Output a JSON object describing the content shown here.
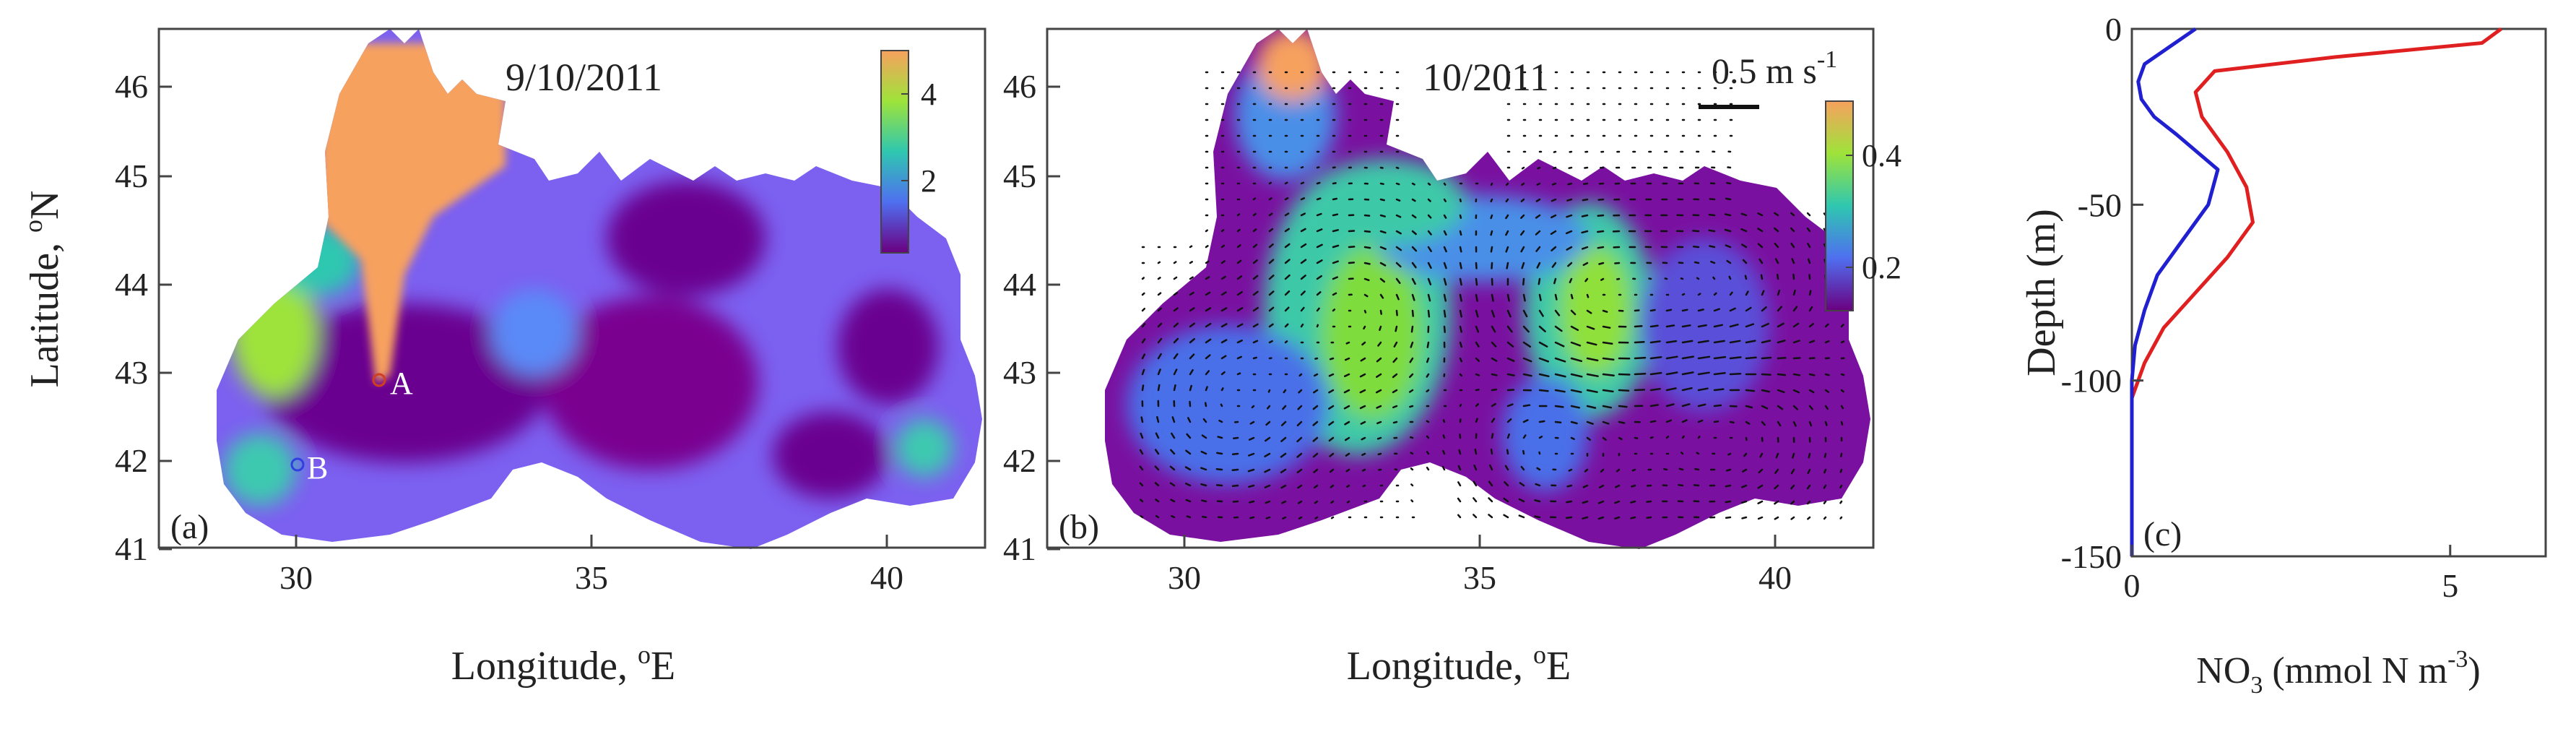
{
  "panels": {
    "a": {
      "letter": "(a)",
      "date": "9/10/2011",
      "xlabel_main": "Longitude, ",
      "xlabel_sup": "o",
      "xlabel_tail": "E",
      "ylabel_main": "Latitude, ",
      "ylabel_sup": "o",
      "ylabel_tail": "N",
      "xticks": [
        "30",
        "35",
        "40"
      ],
      "yticks": [
        "41",
        "42",
        "43",
        "44",
        "45",
        "46"
      ],
      "colorbar_ticks": [
        "2",
        "4"
      ],
      "point_a": "A",
      "point_b": "B",
      "colors": [
        "#6a0080",
        "#4f6ff0",
        "#2fc7b0",
        "#9ee33a",
        "#f7a15e"
      ]
    },
    "b": {
      "letter": "(b)",
      "date": "10/2011",
      "scale_main": "0.5 m s",
      "scale_sup": "-1",
      "xlabel_main": "Longitude, ",
      "xlabel_sup": "o",
      "xlabel_tail": "E",
      "xticks": [
        "30",
        "35",
        "40"
      ],
      "yticks": [
        "41",
        "42",
        "43",
        "44",
        "45",
        "46"
      ],
      "colorbar_ticks": [
        "0.2",
        "0.4"
      ]
    },
    "c": {
      "letter": "(c)",
      "ylabel": "Depth (m)",
      "xlabel_pre": "NO",
      "xlabel_sub": "3",
      "xlabel_mid": " (mmol N m",
      "xlabel_sup": "-3",
      "xlabel_post": ")",
      "xticks": [
        "0",
        "5"
      ],
      "yticks": [
        "0",
        "-50",
        "-100",
        "-150"
      ]
    }
  },
  "chart_data": {
    "type": "line",
    "xlabel": "NO3 (mmol N m-3)",
    "ylabel": "Depth (m)",
    "xlim": [
      0,
      6.5
    ],
    "ylim": [
      -150,
      0
    ],
    "series": [
      {
        "color": "#e02020",
        "depth": [
          0,
          -4,
          -8,
          -12,
          -18,
          -25,
          -35,
          -45,
          -55,
          -65,
          -75,
          -85,
          -95,
          -105,
          -150
        ],
        "values": [
          5.8,
          5.5,
          3.2,
          1.3,
          1.0,
          1.1,
          1.5,
          1.8,
          1.9,
          1.5,
          1.0,
          0.5,
          0.2,
          0.0,
          0.0
        ]
      },
      {
        "color": "#2020d0",
        "depth": [
          0,
          -5,
          -10,
          -15,
          -20,
          -25,
          -30,
          -40,
          -50,
          -60,
          -70,
          -80,
          -90,
          -100,
          -150
        ],
        "values": [
          1.0,
          0.6,
          0.2,
          0.1,
          0.15,
          0.35,
          0.7,
          1.35,
          1.2,
          0.8,
          0.4,
          0.2,
          0.05,
          0.0,
          0.0
        ]
      }
    ]
  }
}
